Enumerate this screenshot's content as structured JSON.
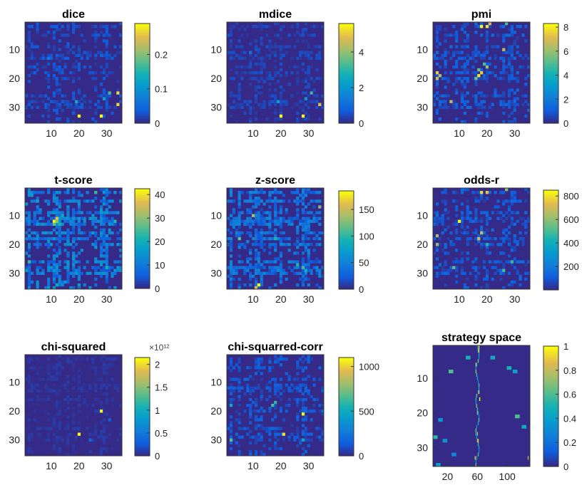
{
  "figure": {
    "background": "#ffffff",
    "colormap": "parula"
  },
  "chart_data": [
    {
      "type": "heatmap",
      "title": "dice",
      "x": {
        "ticks": [
          "10",
          "20",
          "30"
        ],
        "tick_values": [
          10,
          20,
          30
        ],
        "lim": [
          0.5,
          35.5
        ]
      },
      "y": {
        "ticks": [
          "10",
          "20",
          "30"
        ],
        "tick_values": [
          10,
          20,
          30
        ],
        "lim": [
          0.5,
          35.5
        ],
        "direction": "reverse"
      },
      "grid_size": [
        35,
        35
      ],
      "colorbar": {
        "ticks": [
          "0",
          "0.1",
          "0.2"
        ],
        "tick_values": [
          0,
          0.1,
          0.2
        ],
        "lim": [
          0,
          0.29
        ],
        "multiplier": ""
      },
      "hot_cells": [
        [
          20,
          33,
          0.29
        ],
        [
          28,
          33,
          0.29
        ],
        [
          34,
          25,
          0.27
        ],
        [
          34,
          29,
          0.27
        ],
        [
          31,
          25,
          0.17
        ],
        [
          29,
          27,
          0.12
        ],
        [
          19,
          28,
          0.13
        ],
        [
          9,
          13,
          0.07
        ],
        [
          28,
          12,
          0.05
        ]
      ]
    },
    {
      "type": "heatmap",
      "title": "mdice",
      "x": {
        "ticks": [
          "10",
          "20",
          "30"
        ],
        "tick_values": [
          10,
          20,
          30
        ],
        "lim": [
          0.5,
          35.5
        ]
      },
      "y": {
        "ticks": [
          "10",
          "20",
          "30"
        ],
        "tick_values": [
          10,
          20,
          30
        ],
        "lim": [
          0.5,
          35.5
        ],
        "direction": "reverse"
      },
      "grid_size": [
        35,
        35
      ],
      "colorbar": {
        "ticks": [
          "0",
          "2",
          "4"
        ],
        "tick_values": [
          0,
          2,
          4
        ],
        "lim": [
          0,
          5.6
        ],
        "multiplier": ""
      },
      "hot_cells": [
        [
          20,
          33,
          5.6
        ],
        [
          28,
          33,
          5.6
        ],
        [
          34,
          29,
          5.0
        ],
        [
          31,
          25,
          3.2
        ],
        [
          29,
          27,
          2.1
        ],
        [
          19,
          28,
          2.3
        ],
        [
          9,
          11,
          1.2
        ]
      ]
    },
    {
      "type": "heatmap",
      "title": "pmi",
      "x": {
        "ticks": [
          "10",
          "20",
          "30"
        ],
        "tick_values": [
          10,
          20,
          30
        ],
        "lim": [
          0.5,
          35.5
        ]
      },
      "y": {
        "ticks": [
          "10",
          "20",
          "30"
        ],
        "tick_values": [
          10,
          20,
          30
        ],
        "lim": [
          0.5,
          35.5
        ],
        "direction": "reverse"
      },
      "grid_size": [
        35,
        35
      ],
      "colorbar": {
        "ticks": [
          "0",
          "2",
          "4",
          "6",
          "8"
        ],
        "tick_values": [
          0,
          2,
          4,
          6,
          8
        ],
        "lim": [
          0,
          8.3
        ],
        "multiplier": ""
      },
      "hot_cells": [
        [
          18,
          2,
          8.3
        ],
        [
          20,
          2,
          8.0
        ],
        [
          21,
          1,
          7.0
        ],
        [
          17,
          19,
          8.0
        ],
        [
          18,
          18,
          7.5
        ],
        [
          2,
          18,
          7.5
        ],
        [
          2,
          20,
          7.0
        ],
        [
          26,
          10,
          6.5
        ],
        [
          7,
          28,
          6.5
        ],
        [
          3,
          19,
          6.5
        ],
        [
          20,
          16,
          6.0
        ],
        [
          16,
          20,
          5.5
        ],
        [
          17,
          17,
          5.5
        ],
        [
          27,
          1,
          5.0
        ],
        [
          19,
          15,
          5.0
        ]
      ]
    },
    {
      "type": "heatmap",
      "title": "t-score",
      "x": {
        "ticks": [
          "10",
          "20",
          "30"
        ],
        "tick_values": [
          10,
          20,
          30
        ],
        "lim": [
          0.5,
          35.5
        ]
      },
      "y": {
        "ticks": [
          "10",
          "20",
          "30"
        ],
        "tick_values": [
          10,
          20,
          30
        ],
        "lim": [
          0.5,
          35.5
        ],
        "direction": "reverse"
      },
      "grid_size": [
        35,
        35
      ],
      "colorbar": {
        "ticks": [
          "0",
          "10",
          "20",
          "30",
          "40"
        ],
        "tick_values": [
          0,
          10,
          20,
          30,
          40
        ],
        "lim": [
          0,
          42.5
        ],
        "multiplier": ""
      },
      "hot_cells": [
        [
          11,
          12,
          42.5
        ],
        [
          12,
          11,
          38
        ],
        [
          12,
          12,
          30
        ],
        [
          11,
          13,
          28
        ],
        [
          13,
          13,
          22
        ],
        [
          2,
          26,
          25
        ],
        [
          26,
          2,
          24
        ],
        [
          12,
          34,
          20
        ],
        [
          33,
          12,
          22
        ],
        [
          30,
          28,
          21
        ],
        [
          5,
          5,
          18
        ],
        [
          14,
          10,
          20
        ]
      ]
    },
    {
      "type": "heatmap",
      "title": "z-score",
      "x": {
        "ticks": [
          "10",
          "20",
          "30"
        ],
        "tick_values": [
          10,
          20,
          30
        ],
        "lim": [
          0.5,
          35.5
        ]
      },
      "y": {
        "ticks": [
          "10",
          "20",
          "30"
        ],
        "tick_values": [
          10,
          20,
          30
        ],
        "lim": [
          0.5,
          35.5
        ],
        "direction": "reverse"
      },
      "grid_size": [
        35,
        35
      ],
      "colorbar": {
        "ticks": [
          "0",
          "50",
          "100",
          "150"
        ],
        "tick_values": [
          0,
          50,
          100,
          150
        ],
        "lim": [
          0,
          185
        ],
        "multiplier": ""
      },
      "hot_cells": [
        [
          12,
          34,
          185
        ],
        [
          11,
          35,
          160
        ],
        [
          10,
          10,
          140
        ],
        [
          34,
          7,
          130
        ],
        [
          5,
          18,
          120
        ],
        [
          28,
          28,
          110
        ],
        [
          26,
          27,
          100
        ],
        [
          18,
          18,
          95
        ],
        [
          29,
          29,
          90
        ]
      ]
    },
    {
      "type": "heatmap",
      "title": "odds-r",
      "x": {
        "ticks": [
          "10",
          "20",
          "30"
        ],
        "tick_values": [
          10,
          20,
          30
        ],
        "lim": [
          0.5,
          35.5
        ]
      },
      "y": {
        "ticks": [
          "10",
          "20",
          "30"
        ],
        "tick_values": [
          10,
          20,
          30
        ],
        "lim": [
          0.5,
          35.5
        ],
        "direction": "reverse"
      },
      "grid_size": [
        35,
        35
      ],
      "colorbar": {
        "ticks": [
          "200",
          "400",
          "600",
          "800"
        ],
        "tick_values": [
          200,
          400,
          600,
          800
        ],
        "lim": [
          0,
          850
        ],
        "multiplier": ""
      },
      "hot_cells": [
        [
          10,
          12,
          850
        ],
        [
          18,
          2,
          800
        ],
        [
          20,
          2,
          760
        ],
        [
          17,
          18,
          700
        ],
        [
          18,
          16,
          680
        ],
        [
          2,
          17,
          650
        ],
        [
          2,
          20,
          620
        ],
        [
          27,
          1,
          600
        ],
        [
          8,
          28,
          550
        ],
        [
          26,
          29,
          500
        ],
        [
          29,
          26,
          480
        ],
        [
          20,
          20,
          450
        ]
      ]
    },
    {
      "type": "heatmap",
      "title": "chi-squared",
      "x": {
        "ticks": [
          "10",
          "20",
          "30"
        ],
        "tick_values": [
          10,
          20,
          30
        ],
        "lim": [
          0.5,
          35.5
        ]
      },
      "y": {
        "ticks": [
          "10",
          "20",
          "30"
        ],
        "tick_values": [
          10,
          20,
          30
        ],
        "lim": [
          0.5,
          35.5
        ],
        "direction": "reverse"
      },
      "grid_size": [
        35,
        35
      ],
      "colorbar": {
        "ticks": [
          "0",
          "0.5",
          "1",
          "1.5",
          "2"
        ],
        "tick_values": [
          0,
          0.5,
          1,
          1.5,
          2
        ],
        "lim": [
          0,
          2.15
        ],
        "multiplier": "×10¹²"
      },
      "hot_cells": [
        [
          20,
          28,
          2.15
        ],
        [
          28,
          20,
          2.1
        ],
        [
          24,
          30,
          0.35
        ],
        [
          31,
          23,
          0.3
        ]
      ]
    },
    {
      "type": "heatmap",
      "title": "chi-squarred-corr",
      "x": {
        "ticks": [
          "10",
          "20",
          "30"
        ],
        "tick_values": [
          10,
          20,
          30
        ],
        "lim": [
          0.5,
          35.5
        ]
      },
      "y": {
        "ticks": [
          "10",
          "20",
          "30"
        ],
        "tick_values": [
          10,
          20,
          30
        ],
        "lim": [
          0.5,
          35.5
        ],
        "direction": "reverse"
      },
      "grid_size": [
        35,
        35
      ],
      "colorbar": {
        "ticks": [
          "0",
          "500",
          "1000"
        ],
        "tick_values": [
          0,
          500,
          1000
        ],
        "lim": [
          0,
          1100
        ],
        "multiplier": ""
      },
      "hot_cells": [
        [
          28,
          21,
          1100
        ],
        [
          21,
          28,
          1050
        ],
        [
          2,
          30,
          700
        ],
        [
          17,
          18,
          650
        ],
        [
          18,
          17,
          600
        ],
        [
          2,
          18,
          500
        ],
        [
          28,
          30,
          480
        ]
      ]
    },
    {
      "type": "heatmap",
      "title": "strategy space",
      "x": {
        "ticks": [
          "20",
          "60",
          "100"
        ],
        "tick_values": [
          20,
          60,
          100
        ],
        "lim": [
          0.5,
          130.5
        ]
      },
      "y": {
        "ticks": [
          "10",
          "20",
          "30"
        ],
        "tick_values": [
          10,
          20,
          30
        ],
        "lim": [
          0.5,
          35.5
        ],
        "direction": "reverse"
      },
      "grid_size": [
        130,
        35
      ],
      "colorbar": {
        "ticks": [
          "0",
          "0.2",
          "0.4",
          "0.6",
          "0.8",
          "1"
        ],
        "tick_values": [
          0,
          0.2,
          0.4,
          0.6,
          0.8,
          1
        ],
        "lim": [
          0,
          1
        ],
        "multiplier": ""
      },
      "hot_cells": [
        [
          62,
          1,
          1.0
        ],
        [
          62,
          2,
          0.9
        ],
        [
          58,
          6,
          0.8
        ],
        [
          62,
          14,
          0.9
        ],
        [
          63,
          16,
          1.0
        ],
        [
          60,
          20,
          0.7
        ],
        [
          60,
          26,
          0.8
        ],
        [
          61,
          28,
          0.9
        ],
        [
          57,
          33,
          0.9
        ],
        [
          22,
          8,
          0.6
        ],
        [
          45,
          4,
          0.5
        ],
        [
          78,
          4,
          0.45
        ],
        [
          100,
          7,
          0.5
        ],
        [
          108,
          8,
          0.4
        ],
        [
          8,
          22,
          0.35
        ],
        [
          111,
          21,
          0.6
        ],
        [
          120,
          24,
          0.45
        ],
        [
          1,
          27,
          0.55
        ],
        [
          14,
          28,
          0.35
        ],
        [
          26,
          32,
          0.3
        ],
        [
          128,
          33,
          0.8
        ],
        [
          5,
          35,
          0.4
        ]
      ]
    }
  ]
}
